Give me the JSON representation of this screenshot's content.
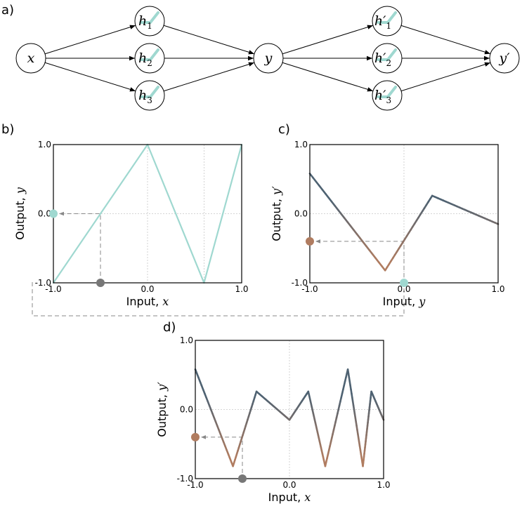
{
  "panel_letters": {
    "a": "a)",
    "b": "b)",
    "c": "c)",
    "d": "d)"
  },
  "network": {
    "input": "x",
    "hidden1": [
      {
        "base": "h",
        "sub": "1"
      },
      {
        "base": "h",
        "sub": "2"
      },
      {
        "base": "h",
        "sub": "3"
      }
    ],
    "middle": "y",
    "hidden2": [
      {
        "base": "h′",
        "sub": "1"
      },
      {
        "base": "h′",
        "sub": "2"
      },
      {
        "base": "h′",
        "sub": "3"
      }
    ],
    "output": "y′"
  },
  "colors": {
    "teal": "#9fd8d0",
    "brown": "#b07c60",
    "slate": "#4e6272",
    "grey_dot": "#777777",
    "guide": "#888888"
  },
  "chart_data": [
    {
      "id": "b",
      "type": "line",
      "xlabel": "Input, ",
      "xvar": "x",
      "ylabel": "Output, ",
      "yvar": "y",
      "xlim": [
        -1,
        1
      ],
      "ylim": [
        -1,
        1
      ],
      "xticks": [
        "-1.0",
        "0.0",
        "1.0"
      ],
      "yticks": [
        "-1.0",
        "0.0",
        "1.0"
      ],
      "grid": true,
      "points": [
        [
          -1,
          -1
        ],
        [
          0,
          1
        ],
        [
          0.6,
          -1
        ],
        [
          1,
          1
        ]
      ],
      "color_mode": "teal",
      "marker_x": {
        "x": -0.5,
        "color": "grey"
      },
      "marker_y": {
        "y": 0.0,
        "color": "teal"
      }
    },
    {
      "id": "c",
      "type": "line",
      "xlabel": "Input, ",
      "xvar": "y",
      "ylabel": "Output, ",
      "yvar": "y′",
      "xlim": [
        -1,
        1
      ],
      "ylim": [
        -1,
        1
      ],
      "xticks": [
        "-1.0",
        "0.0",
        "1.0"
      ],
      "yticks": [
        "-1.0",
        "0.0",
        "1.0"
      ],
      "grid": true,
      "points": [
        [
          -1,
          0.58
        ],
        [
          -0.2,
          -0.82
        ],
        [
          0.3,
          0.26
        ],
        [
          1,
          -0.15
        ]
      ],
      "color_mode": "gradient",
      "marker_x": {
        "x": 0.0,
        "color": "teal"
      },
      "marker_y": {
        "y": -0.4,
        "color": "brown"
      }
    },
    {
      "id": "d",
      "type": "line",
      "xlabel": "Input, ",
      "xvar": "x",
      "ylabel": "Output, ",
      "yvar": "y′",
      "xlim": [
        -1,
        1
      ],
      "ylim": [
        -1,
        1
      ],
      "xticks": [
        "-1.0",
        "0.0",
        "1.0"
      ],
      "yticks": [
        "-1.0",
        "0.0",
        "1.0"
      ],
      "grid": true,
      "points": [
        [
          -1,
          0.58
        ],
        [
          -0.6,
          -0.82
        ],
        [
          -0.35,
          0.26
        ],
        [
          0,
          -0.15
        ],
        [
          0.2,
          0.26
        ],
        [
          0.38,
          -0.82
        ],
        [
          0.62,
          0.58
        ],
        [
          0.78,
          -0.82
        ],
        [
          0.87,
          0.26
        ],
        [
          1,
          -0.15
        ]
      ],
      "color_mode": "gradient",
      "marker_x": {
        "x": -0.5,
        "color": "grey"
      },
      "marker_y": {
        "y": -0.4,
        "color": "brown"
      }
    }
  ]
}
